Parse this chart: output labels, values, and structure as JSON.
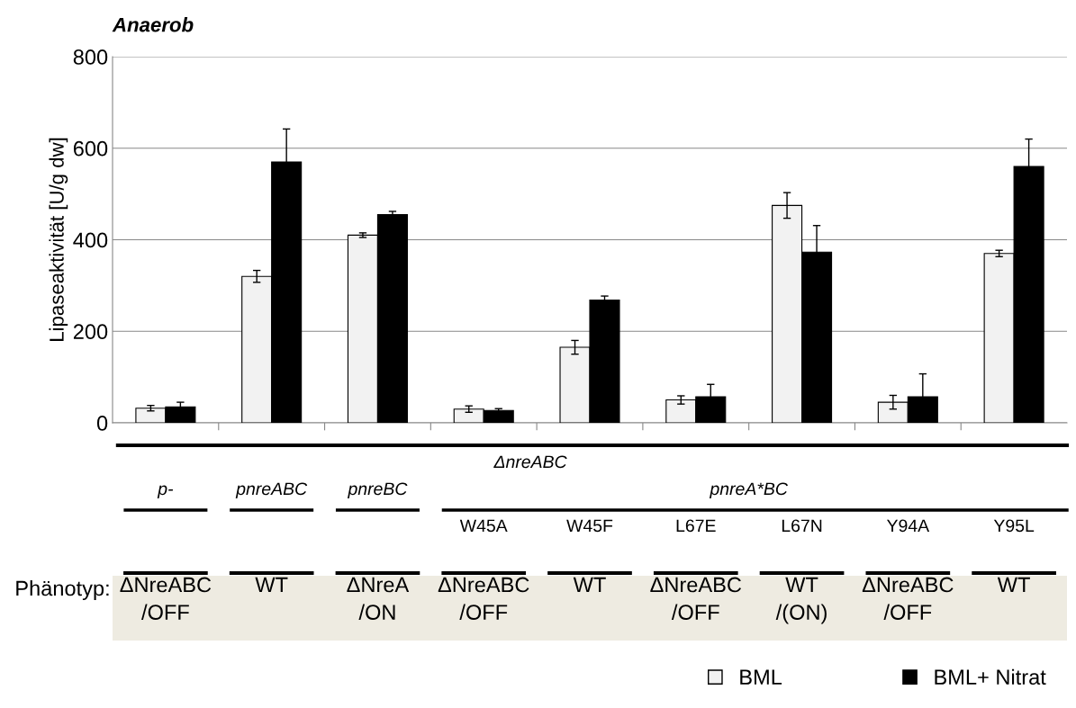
{
  "chart_data": {
    "type": "bar",
    "title": "Anaerob",
    "ylabel": "Lipaseaktivität [U/g dw]",
    "categories": [
      null,
      null,
      null,
      "W45A",
      "W45F",
      "L67E",
      "L67N",
      "Y94A",
      "Y95L"
    ],
    "series": [
      {
        "name": "BML",
        "color": "#f2f2f2",
        "values": [
          32,
          320,
          410,
          30,
          165,
          50,
          475,
          45,
          370
        ],
        "errors": [
          6,
          13,
          5,
          7,
          15,
          9,
          28,
          15,
          7
        ]
      },
      {
        "name": "BML+ Nitrat",
        "color": "#000000",
        "values": [
          35,
          570,
          455,
          27,
          268,
          57,
          373,
          57,
          560
        ],
        "errors": [
          10,
          72,
          7,
          4,
          9,
          27,
          58,
          50,
          60
        ]
      }
    ],
    "ylim": [
      0,
      800
    ],
    "yticks": [
      0,
      200,
      400,
      600,
      800
    ],
    "grid": "y",
    "legend": "bottom right",
    "annotations": [
      "ΔnreABC",
      "pnreA*BC",
      "p-",
      "pnreABC",
      "pnreBC",
      "Phänotyp:",
      "ΔNreABC\n/OFF",
      "WT",
      "ΔNreA\n/ON",
      "ΔNreABC\n/OFF",
      "WT",
      "ΔNreABC\n/OFF",
      "WT\n/(ON)",
      "ΔNreABC\n/OFF",
      "WT"
    ]
  }
}
